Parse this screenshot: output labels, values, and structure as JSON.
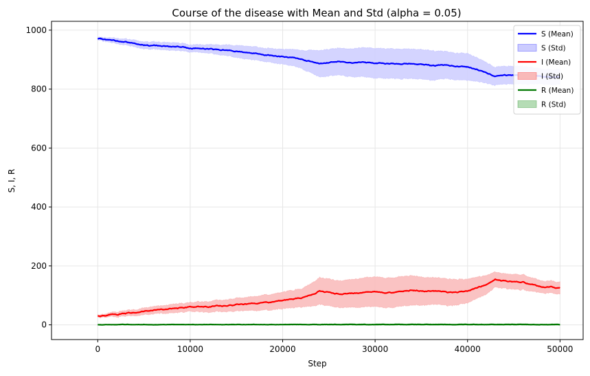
{
  "chart_data": {
    "type": "line",
    "title": "Course of the disease with Mean and Std (alpha = 0.05)",
    "xlabel": "Step",
    "ylabel": "S, I, R",
    "xlim": [
      -5000,
      52500
    ],
    "ylim": [
      -50,
      1030
    ],
    "xticks": [
      0,
      10000,
      20000,
      30000,
      40000,
      50000
    ],
    "yticks": [
      0,
      200,
      400,
      600,
      800,
      1000
    ],
    "grid": true,
    "legend_position": "top-right",
    "x": [
      0,
      2000,
      4000,
      6000,
      8000,
      10000,
      12000,
      14000,
      16000,
      18000,
      20000,
      22000,
      24000,
      26000,
      28000,
      30000,
      32000,
      34000,
      36000,
      38000,
      40000,
      42000,
      43000,
      44000,
      46000,
      48000,
      50000
    ],
    "series": [
      {
        "name": "S (Mean)",
        "band_name": "S (Std)",
        "color": "#0000ff",
        "band_color": "#ccccff",
        "mean": [
          970,
          963,
          955,
          947,
          945,
          940,
          937,
          932,
          925,
          918,
          910,
          902,
          885,
          895,
          890,
          888,
          885,
          887,
          880,
          880,
          875,
          857,
          843,
          848,
          848,
          843,
          840
        ],
        "std": [
          4,
          9,
          11,
          12,
          13,
          12,
          14,
          18,
          22,
          22,
          25,
          30,
          45,
          45,
          48,
          50,
          50,
          50,
          50,
          45,
          45,
          35,
          30,
          30,
          30,
          25,
          25
        ]
      },
      {
        "name": "I (Mean)",
        "band_name": "I (Std)",
        "color": "#ff0000",
        "band_color": "#f9b9b9",
        "mean": [
          30,
          35,
          42,
          50,
          55,
          60,
          62,
          65,
          70,
          75,
          82,
          90,
          115,
          105,
          108,
          112,
          110,
          118,
          115,
          110,
          115,
          135,
          152,
          148,
          145,
          130,
          125
        ],
        "std": [
          3,
          8,
          10,
          12,
          14,
          15,
          18,
          20,
          22,
          25,
          28,
          30,
          45,
          45,
          48,
          50,
          50,
          50,
          45,
          45,
          40,
          32,
          25,
          25,
          25,
          20,
          20
        ]
      },
      {
        "name": "R (Mean)",
        "band_name": "R (Std)",
        "color": "#007700",
        "band_color": "#b5dcb5",
        "mean": [
          0,
          1,
          1,
          1,
          1,
          1,
          1,
          1,
          1,
          1,
          1,
          1,
          1,
          1,
          1,
          1,
          1,
          1,
          1,
          1,
          1,
          1,
          1,
          1,
          1,
          1,
          1
        ],
        "std": [
          0,
          1,
          1,
          1,
          1,
          1,
          1,
          1,
          1,
          1,
          1,
          1,
          1,
          2,
          2,
          2,
          2,
          2,
          2,
          2,
          2,
          2,
          2,
          2,
          2,
          2,
          2
        ]
      }
    ]
  }
}
